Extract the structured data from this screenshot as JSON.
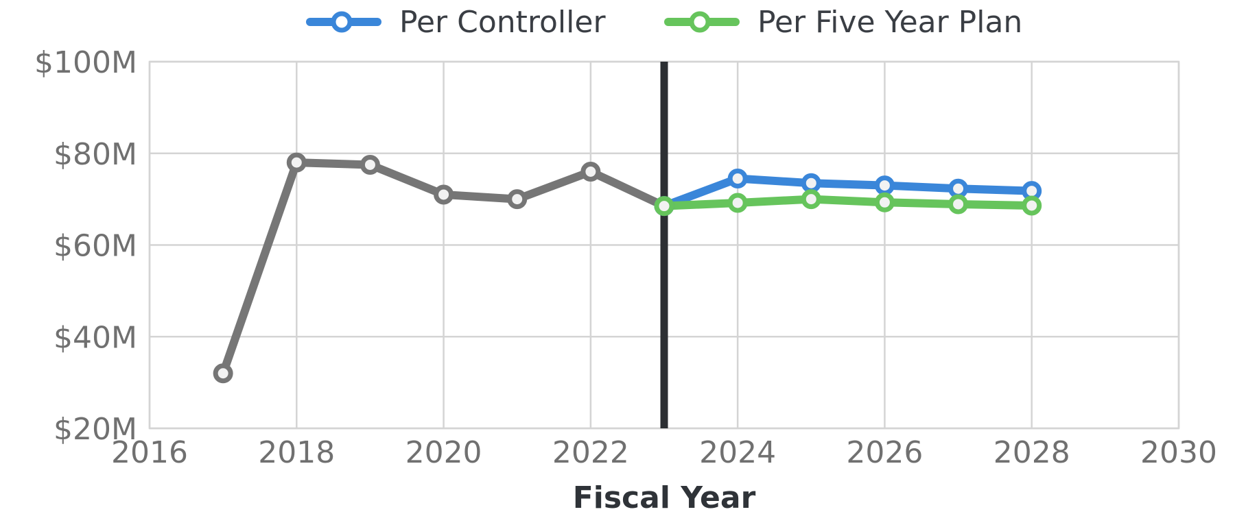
{
  "chart_data": {
    "type": "line",
    "title": "",
    "xlabel": "Fiscal Year",
    "ylabel": "",
    "xlim": [
      2016,
      2030
    ],
    "ylim": [
      20,
      100
    ],
    "x_ticks": [
      2016,
      2018,
      2020,
      2022,
      2024,
      2026,
      2028,
      2030
    ],
    "x_tick_labels": [
      "2016",
      "2018",
      "2020",
      "2022",
      "2024",
      "2026",
      "2028",
      "2030"
    ],
    "y_ticks": [
      20,
      40,
      60,
      80,
      100
    ],
    "y_tick_labels": [
      "$20M",
      "$40M",
      "$60M",
      "$80M",
      "$100M"
    ],
    "grid": true,
    "legend_position": "top-center",
    "divider_x": 2023,
    "colors": {
      "historical": "#767676",
      "controller": "#3a86d9",
      "five_year_plan": "#66c45c",
      "divider": "#2c2f33"
    },
    "series": [
      {
        "key": "historical",
        "x": [
          2017,
          2018,
          2019,
          2020,
          2021,
          2022,
          2023
        ],
        "y": [
          32,
          78,
          77.5,
          71,
          70,
          76,
          68.5
        ]
      },
      {
        "key": "controller",
        "name": "Per Controller",
        "x": [
          2023,
          2024,
          2025,
          2026,
          2027,
          2028
        ],
        "y": [
          68.5,
          74.5,
          73.5,
          73,
          72.3,
          71.8
        ]
      },
      {
        "key": "five_year_plan",
        "name": "Per Five Year Plan",
        "x": [
          2023,
          2024,
          2025,
          2026,
          2027,
          2028
        ],
        "y": [
          68.5,
          69.2,
          70,
          69.3,
          68.9,
          68.6
        ]
      }
    ]
  }
}
